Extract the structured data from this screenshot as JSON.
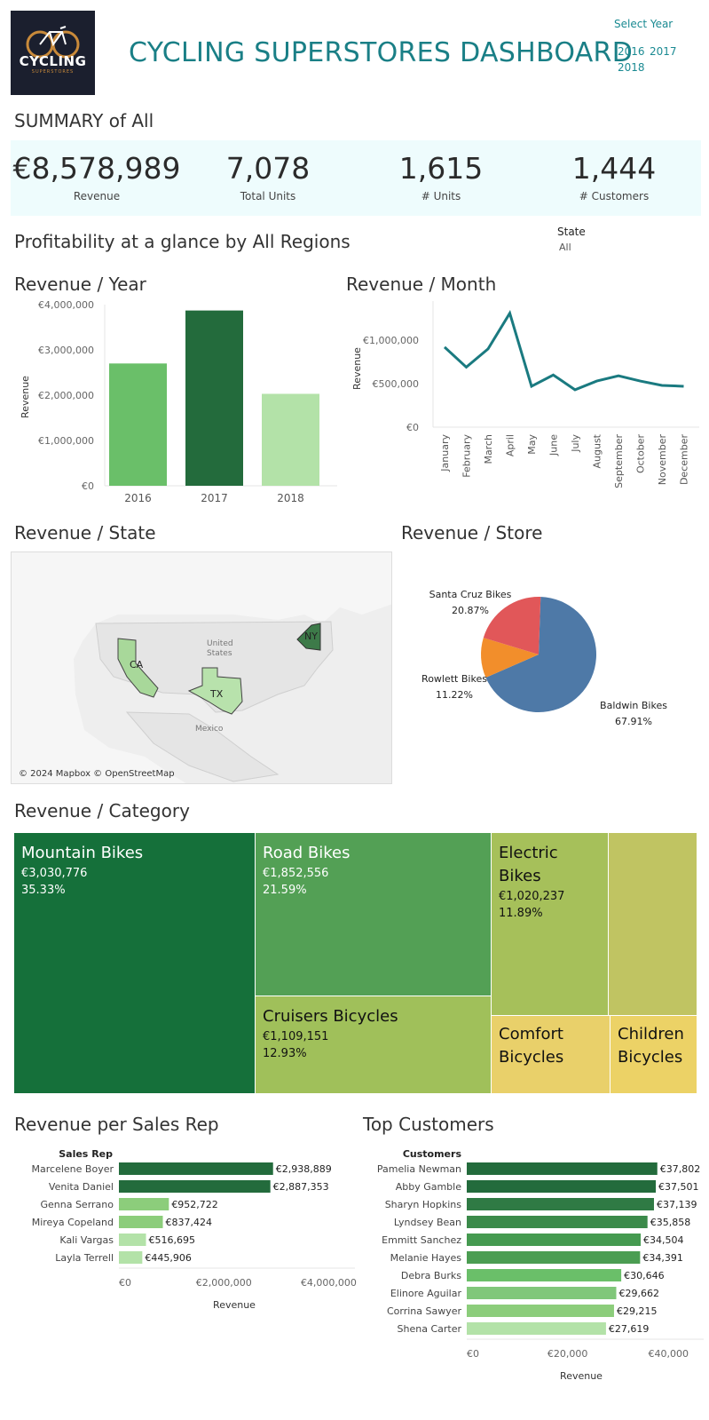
{
  "header": {
    "logo_text": "CYCLING",
    "logo_sub": "SUPERSTORES",
    "title": "CYCLING SUPERSTORES DASHBOARD",
    "select_year_label": "Select Year",
    "years": [
      "2016",
      "2017",
      "2018"
    ]
  },
  "summary": {
    "title": "SUMMARY of All",
    "kpis": [
      {
        "value": "€8,578,989",
        "label": "Revenue"
      },
      {
        "value": "7,078",
        "label": "Total Units"
      },
      {
        "value": "1,615",
        "label": "# Units"
      },
      {
        "value": "1,444",
        "label": "# Customers"
      }
    ]
  },
  "profitability": {
    "title": "Profitability at a glance by All Regions",
    "state_label": "State",
    "state_value": "All"
  },
  "revenue_year": {
    "title": "Revenue / Year",
    "ylabel": "Revenue",
    "yticks": [
      "€0",
      "€1,000,000",
      "€2,000,000",
      "€3,000,000",
      "€4,000,000"
    ],
    "categories": [
      "2016",
      "2017",
      "2018"
    ],
    "values": [
      2700000,
      3870000,
      2030000
    ],
    "colors": [
      "#6abf69",
      "#236b3c",
      "#b3e2a8"
    ]
  },
  "revenue_month": {
    "title": "Revenue / Month",
    "ylabel": "Revenue",
    "yticks": [
      "€0",
      "€500,000",
      "€1,000,000"
    ],
    "categories": [
      "January",
      "February",
      "March",
      "April",
      "May",
      "June",
      "July",
      "August",
      "September",
      "October",
      "November",
      "December"
    ],
    "values": [
      920000,
      690000,
      900000,
      1310000,
      470000,
      600000,
      430000,
      530000,
      590000,
      530000,
      480000,
      470000
    ],
    "color": "#1a7a80"
  },
  "revenue_state": {
    "title": "Revenue / State",
    "labels": [
      "CA",
      "TX",
      "NY"
    ],
    "map_labels": [
      "United",
      "States",
      "Mexico"
    ],
    "attribution": "© 2024 Mapbox © OpenStreetMap"
  },
  "revenue_store": {
    "title": "Revenue / Store",
    "slices": [
      {
        "name": "Baldwin Bikes",
        "pct": "67.91%",
        "value": 67.91,
        "color": "#4e79a7"
      },
      {
        "name": "Rowlett Bikes",
        "pct": "11.22%",
        "value": 11.22,
        "color": "#f28e2b"
      },
      {
        "name": "Santa Cruz Bikes",
        "pct": "20.87%",
        "value": 20.87,
        "color": "#e15759"
      }
    ]
  },
  "revenue_category": {
    "title": "Revenue / Category",
    "cells": [
      {
        "name": "Mountain Bikes",
        "value": "€3,030,776",
        "pct": "35.33%",
        "color": "#15703a"
      },
      {
        "name": "Road Bikes",
        "value": "€1,852,556",
        "pct": "21.59%",
        "color": "#53a055"
      },
      {
        "name": "Cruisers Bicycles",
        "value": "€1,109,151",
        "pct": "12.93%",
        "color": "#a0c05a"
      },
      {
        "name": "Electric Bikes",
        "value": "€1,020,237",
        "pct": "11.89%",
        "color": "#a6c05a"
      },
      {
        "name": "Comfort Bicycles",
        "color": "#e9d06a"
      },
      {
        "name": "Children Bicycles",
        "color": "#ecd266"
      },
      {
        "name": "",
        "color": "#c0c462"
      }
    ]
  },
  "sales_rep": {
    "title": "Revenue per Sales Rep",
    "header": "Sales Rep",
    "xlabel": "Revenue",
    "xticks": [
      "€0",
      "€2,000,000",
      "€4,000,000"
    ],
    "reps": [
      {
        "name": "Marcelene Boyer",
        "label": "€2,938,889",
        "value": 2938889,
        "color": "#236b3c"
      },
      {
        "name": "Venita Daniel",
        "label": "€2,887,353",
        "value": 2887353,
        "color": "#236b3c"
      },
      {
        "name": "Genna Serrano",
        "label": "€952,722",
        "value": 952722,
        "color": "#8ccd7b"
      },
      {
        "name": "Mireya Copeland",
        "label": "€837,424",
        "value": 837424,
        "color": "#8ccd7b"
      },
      {
        "name": "Kali Vargas",
        "label": "€516,695",
        "value": 516695,
        "color": "#b3e2a8"
      },
      {
        "name": "Layla Terrell",
        "label": "€445,906",
        "value": 445906,
        "color": "#b3e2a8"
      }
    ]
  },
  "top_customers": {
    "title": "Top Customers",
    "header": "Customers",
    "xlabel": "Revenue",
    "xticks": [
      "€0",
      "€20,000",
      "€40,000"
    ],
    "customers": [
      {
        "name": "Pamelia Newman",
        "label": "€37,802",
        "value": 37802,
        "color": "#236b3c"
      },
      {
        "name": "Abby Gamble",
        "label": "€37,501",
        "value": 37501,
        "color": "#236b3c"
      },
      {
        "name": "Sharyn Hopkins",
        "label": "€37,139",
        "value": 37139,
        "color": "#2f7a44"
      },
      {
        "name": "Lyndsey Bean",
        "label": "€35,858",
        "value": 35858,
        "color": "#3b8a4a"
      },
      {
        "name": "Emmitt Sanchez",
        "label": "€34,504",
        "value": 34504,
        "color": "#459a50"
      },
      {
        "name": "Melanie Hayes",
        "label": "€34,391",
        "value": 34391,
        "color": "#4b9d52"
      },
      {
        "name": "Debra Burks",
        "label": "€30,646",
        "value": 30646,
        "color": "#6abf69"
      },
      {
        "name": "Elinore Aguilar",
        "label": "€29,662",
        "value": 29662,
        "color": "#80c77a"
      },
      {
        "name": "Corrina Sawyer",
        "label": "€29,215",
        "value": 29215,
        "color": "#8ccd7b"
      },
      {
        "name": "Shena Carter",
        "label": "€27,619",
        "value": 27619,
        "color": "#b3e2a8"
      }
    ]
  },
  "chart_data": [
    {
      "type": "bar",
      "title": "Revenue / Year",
      "ylabel": "Revenue",
      "categories": [
        "2016",
        "2017",
        "2018"
      ],
      "values": [
        2700000,
        3870000,
        2030000
      ],
      "ylim": [
        0,
        4000000
      ]
    },
    {
      "type": "line",
      "title": "Revenue / Month",
      "ylabel": "Revenue",
      "categories": [
        "January",
        "February",
        "March",
        "April",
        "May",
        "June",
        "July",
        "August",
        "September",
        "October",
        "November",
        "December"
      ],
      "values": [
        920000,
        690000,
        900000,
        1310000,
        470000,
        600000,
        430000,
        530000,
        590000,
        530000,
        480000,
        470000
      ]
    },
    {
      "type": "pie",
      "title": "Revenue / Store",
      "categories": [
        "Baldwin Bikes",
        "Rowlett Bikes",
        "Santa Cruz Bikes"
      ],
      "values": [
        67.91,
        11.22,
        20.87
      ]
    },
    {
      "type": "bar",
      "title": "Revenue per Sales Rep",
      "xlabel": "Revenue",
      "categories": [
        "Marcelene Boyer",
        "Venita Daniel",
        "Genna Serrano",
        "Mireya Copeland",
        "Kali Vargas",
        "Layla Terrell"
      ],
      "values": [
        2938889,
        2887353,
        952722,
        837424,
        516695,
        445906
      ]
    },
    {
      "type": "bar",
      "title": "Top Customers",
      "xlabel": "Revenue",
      "categories": [
        "Pamelia Newman",
        "Abby Gamble",
        "Sharyn Hopkins",
        "Lyndsey Bean",
        "Emmitt Sanchez",
        "Melanie Hayes",
        "Debra Burks",
        "Elinore Aguilar",
        "Corrina Sawyer",
        "Shena Carter"
      ],
      "values": [
        37802,
        37501,
        37139,
        35858,
        34504,
        34391,
        30646,
        29662,
        29215,
        27619
      ]
    }
  ]
}
